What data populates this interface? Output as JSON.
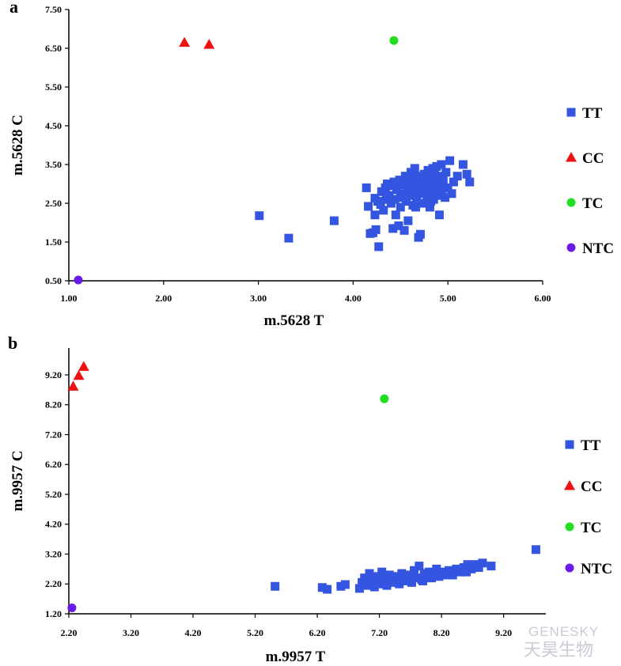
{
  "watermark": {
    "brand": "GENESKY",
    "brand_cn": "天昊生物"
  },
  "colors": {
    "TT": "#3355e0",
    "CC": "#ee1111",
    "TC": "#22dd22",
    "NTC": "#6a1ae8"
  },
  "chart_data": [
    {
      "panel_label": "a",
      "type": "scatter",
      "xlabel": "m.5628 T",
      "ylabel": "m.5628 C",
      "xlim": [
        1.0,
        6.0
      ],
      "ylim": [
        0.5,
        7.5
      ],
      "xticks": [
        "1.00",
        "2.00",
        "3.00",
        "4.00",
        "5.00",
        "6.00"
      ],
      "yticks": [
        "0.50",
        "1.50",
        "2.50",
        "3.50",
        "4.50",
        "5.50",
        "6.50",
        "7.50"
      ],
      "legend": {
        "position": "right",
        "entries": [
          "TT",
          "CC",
          "TC",
          "NTC"
        ]
      },
      "series": [
        {
          "name": "TT",
          "marker": "square",
          "points": [
            [
              3.01,
              2.18
            ],
            [
              3.32,
              1.6
            ],
            [
              3.8,
              2.05
            ],
            [
              4.14,
              2.9
            ],
            [
              4.16,
              2.42
            ],
            [
              4.18,
              1.72
            ],
            [
              4.21,
              1.74
            ],
            [
              4.23,
              2.2
            ],
            [
              4.23,
              2.63
            ],
            [
              4.24,
              1.82
            ],
            [
              4.26,
              2.55
            ],
            [
              4.27,
              1.38
            ],
            [
              4.29,
              2.47
            ],
            [
              4.3,
              2.8
            ],
            [
              4.32,
              2.32
            ],
            [
              4.34,
              2.9
            ],
            [
              4.36,
              3.0
            ],
            [
              4.38,
              2.7
            ],
            [
              4.4,
              2.95
            ],
            [
              4.42,
              1.85
            ],
            [
              4.43,
              3.05
            ],
            [
              4.44,
              2.6
            ],
            [
              4.46,
              2.85
            ],
            [
              4.48,
              1.92
            ],
            [
              4.49,
              3.1
            ],
            [
              4.5,
              2.4
            ],
            [
              4.5,
              2.75
            ],
            [
              4.52,
              2.98
            ],
            [
              4.54,
              1.8
            ],
            [
              4.55,
              3.2
            ],
            [
              4.56,
              2.55
            ],
            [
              4.57,
              2.85
            ],
            [
              4.58,
              2.05
            ],
            [
              4.59,
              3.05
            ],
            [
              4.6,
              2.7
            ],
            [
              4.61,
              3.3
            ],
            [
              4.62,
              2.95
            ],
            [
              4.63,
              2.45
            ],
            [
              4.64,
              2.8
            ],
            [
              4.65,
              3.4
            ],
            [
              4.66,
              3.1
            ],
            [
              4.67,
              2.6
            ],
            [
              4.68,
              2.9
            ],
            [
              4.69,
              1.62
            ],
            [
              4.7,
              3.2
            ],
            [
              4.71,
              1.7
            ],
            [
              4.72,
              2.75
            ],
            [
              4.73,
              3.0
            ],
            [
              4.74,
              2.5
            ],
            [
              4.75,
              3.25
            ],
            [
              4.76,
              2.85
            ],
            [
              4.77,
              3.1
            ],
            [
              4.78,
              2.7
            ],
            [
              4.79,
              3.35
            ],
            [
              4.8,
              2.95
            ],
            [
              4.81,
              2.4
            ],
            [
              4.82,
              3.15
            ],
            [
              4.83,
              2.8
            ],
            [
              4.84,
              3.4
            ],
            [
              4.85,
              2.6
            ],
            [
              4.86,
              3.05
            ],
            [
              4.87,
              2.9
            ],
            [
              4.88,
              3.45
            ],
            [
              4.89,
              2.7
            ],
            [
              4.9,
              3.2
            ],
            [
              4.91,
              2.2
            ],
            [
              4.92,
              2.95
            ],
            [
              4.93,
              3.5
            ],
            [
              4.94,
              2.8
            ],
            [
              4.95,
              3.1
            ],
            [
              4.97,
              2.65
            ],
            [
              4.98,
              3.3
            ],
            [
              5.0,
              2.9
            ],
            [
              5.02,
              3.6
            ],
            [
              5.04,
              2.75
            ],
            [
              5.06,
              3.05
            ],
            [
              5.1,
              3.2
            ],
            [
              5.16,
              3.5
            ],
            [
              5.2,
              3.25
            ],
            [
              5.23,
              3.05
            ],
            [
              4.35,
              2.6
            ],
            [
              4.45,
              2.2
            ],
            [
              4.53,
              2.65
            ],
            [
              4.58,
              3.15
            ],
            [
              4.66,
              2.4
            ],
            [
              4.74,
              2.95
            ],
            [
              4.82,
              2.55
            ],
            [
              4.86,
              3.3
            ],
            [
              4.95,
              3.0
            ],
            [
              4.4,
              2.5
            ]
          ]
        },
        {
          "name": "CC",
          "marker": "triangle",
          "points": [
            [
              2.22,
              6.65
            ],
            [
              2.48,
              6.6
            ]
          ]
        },
        {
          "name": "TC",
          "marker": "circle",
          "points": [
            [
              4.43,
              6.7
            ]
          ]
        },
        {
          "name": "NTC",
          "marker": "circle",
          "points": [
            [
              1.1,
              0.52
            ]
          ]
        }
      ]
    },
    {
      "panel_label": "b",
      "type": "scatter",
      "xlabel": "m.9957 T",
      "ylabel": "m.9957 C",
      "xlim": [
        2.2,
        9.88
      ],
      "ylim": [
        1.2,
        10.1
      ],
      "xticks": [
        "2.20",
        "3.20",
        "4.20",
        "5.20",
        "6.20",
        "7.20",
        "8.20",
        "9.20"
      ],
      "yticks": [
        "1.20",
        "2.20",
        "3.20",
        "4.20",
        "5.20",
        "6.20",
        "7.20",
        "8.20",
        "9.20"
      ],
      "legend": {
        "position": "right",
        "entries": [
          "TT",
          "CC",
          "TC",
          "NTC"
        ]
      },
      "series": [
        {
          "name": "TT",
          "marker": "square",
          "points": [
            [
              5.52,
              2.12
            ],
            [
              6.28,
              2.08
            ],
            [
              6.36,
              2.02
            ],
            [
              6.58,
              2.12
            ],
            [
              6.65,
              2.18
            ],
            [
              6.88,
              2.05
            ],
            [
              6.92,
              2.25
            ],
            [
              6.96,
              2.4
            ],
            [
              7.0,
              2.15
            ],
            [
              7.04,
              2.55
            ],
            [
              7.08,
              2.3
            ],
            [
              7.12,
              2.1
            ],
            [
              7.16,
              2.45
            ],
            [
              7.2,
              2.2
            ],
            [
              7.24,
              2.6
            ],
            [
              7.28,
              2.35
            ],
            [
              7.32,
              2.15
            ],
            [
              7.36,
              2.5
            ],
            [
              7.4,
              2.3
            ],
            [
              7.44,
              2.25
            ],
            [
              7.48,
              2.45
            ],
            [
              7.52,
              2.2
            ],
            [
              7.56,
              2.55
            ],
            [
              7.6,
              2.35
            ],
            [
              7.64,
              2.3
            ],
            [
              7.68,
              2.5
            ],
            [
              7.72,
              2.25
            ],
            [
              7.76,
              2.65
            ],
            [
              7.8,
              2.4
            ],
            [
              7.84,
              2.8
            ],
            [
              7.88,
              2.35
            ],
            [
              7.92,
              2.55
            ],
            [
              7.96,
              2.45
            ],
            [
              8.0,
              2.6
            ],
            [
              8.04,
              2.4
            ],
            [
              8.08,
              2.55
            ],
            [
              8.12,
              2.7
            ],
            [
              8.16,
              2.45
            ],
            [
              8.2,
              2.6
            ],
            [
              8.26,
              2.55
            ],
            [
              8.32,
              2.65
            ],
            [
              8.38,
              2.5
            ],
            [
              8.44,
              2.7
            ],
            [
              8.5,
              2.6
            ],
            [
              8.56,
              2.75
            ],
            [
              8.62,
              2.85
            ],
            [
              8.68,
              2.7
            ],
            [
              8.74,
              2.85
            ],
            [
              8.8,
              2.75
            ],
            [
              8.86,
              2.9
            ],
            [
              9.0,
              2.8
            ],
            [
              9.72,
              3.35
            ],
            [
              7.3,
              2.4
            ],
            [
              7.5,
              2.35
            ],
            [
              7.7,
              2.4
            ],
            [
              7.9,
              2.3
            ],
            [
              8.1,
              2.5
            ],
            [
              8.3,
              2.5
            ],
            [
              8.6,
              2.6
            ],
            [
              7.05,
              2.2
            ]
          ]
        },
        {
          "name": "CC",
          "marker": "triangle",
          "points": [
            [
              2.27,
              8.82
            ],
            [
              2.36,
              9.18
            ],
            [
              2.44,
              9.48
            ]
          ]
        },
        {
          "name": "TC",
          "marker": "circle",
          "points": [
            [
              7.28,
              8.4
            ]
          ]
        },
        {
          "name": "NTC",
          "marker": "circle",
          "points": [
            [
              2.25,
              1.4
            ]
          ]
        }
      ]
    }
  ]
}
